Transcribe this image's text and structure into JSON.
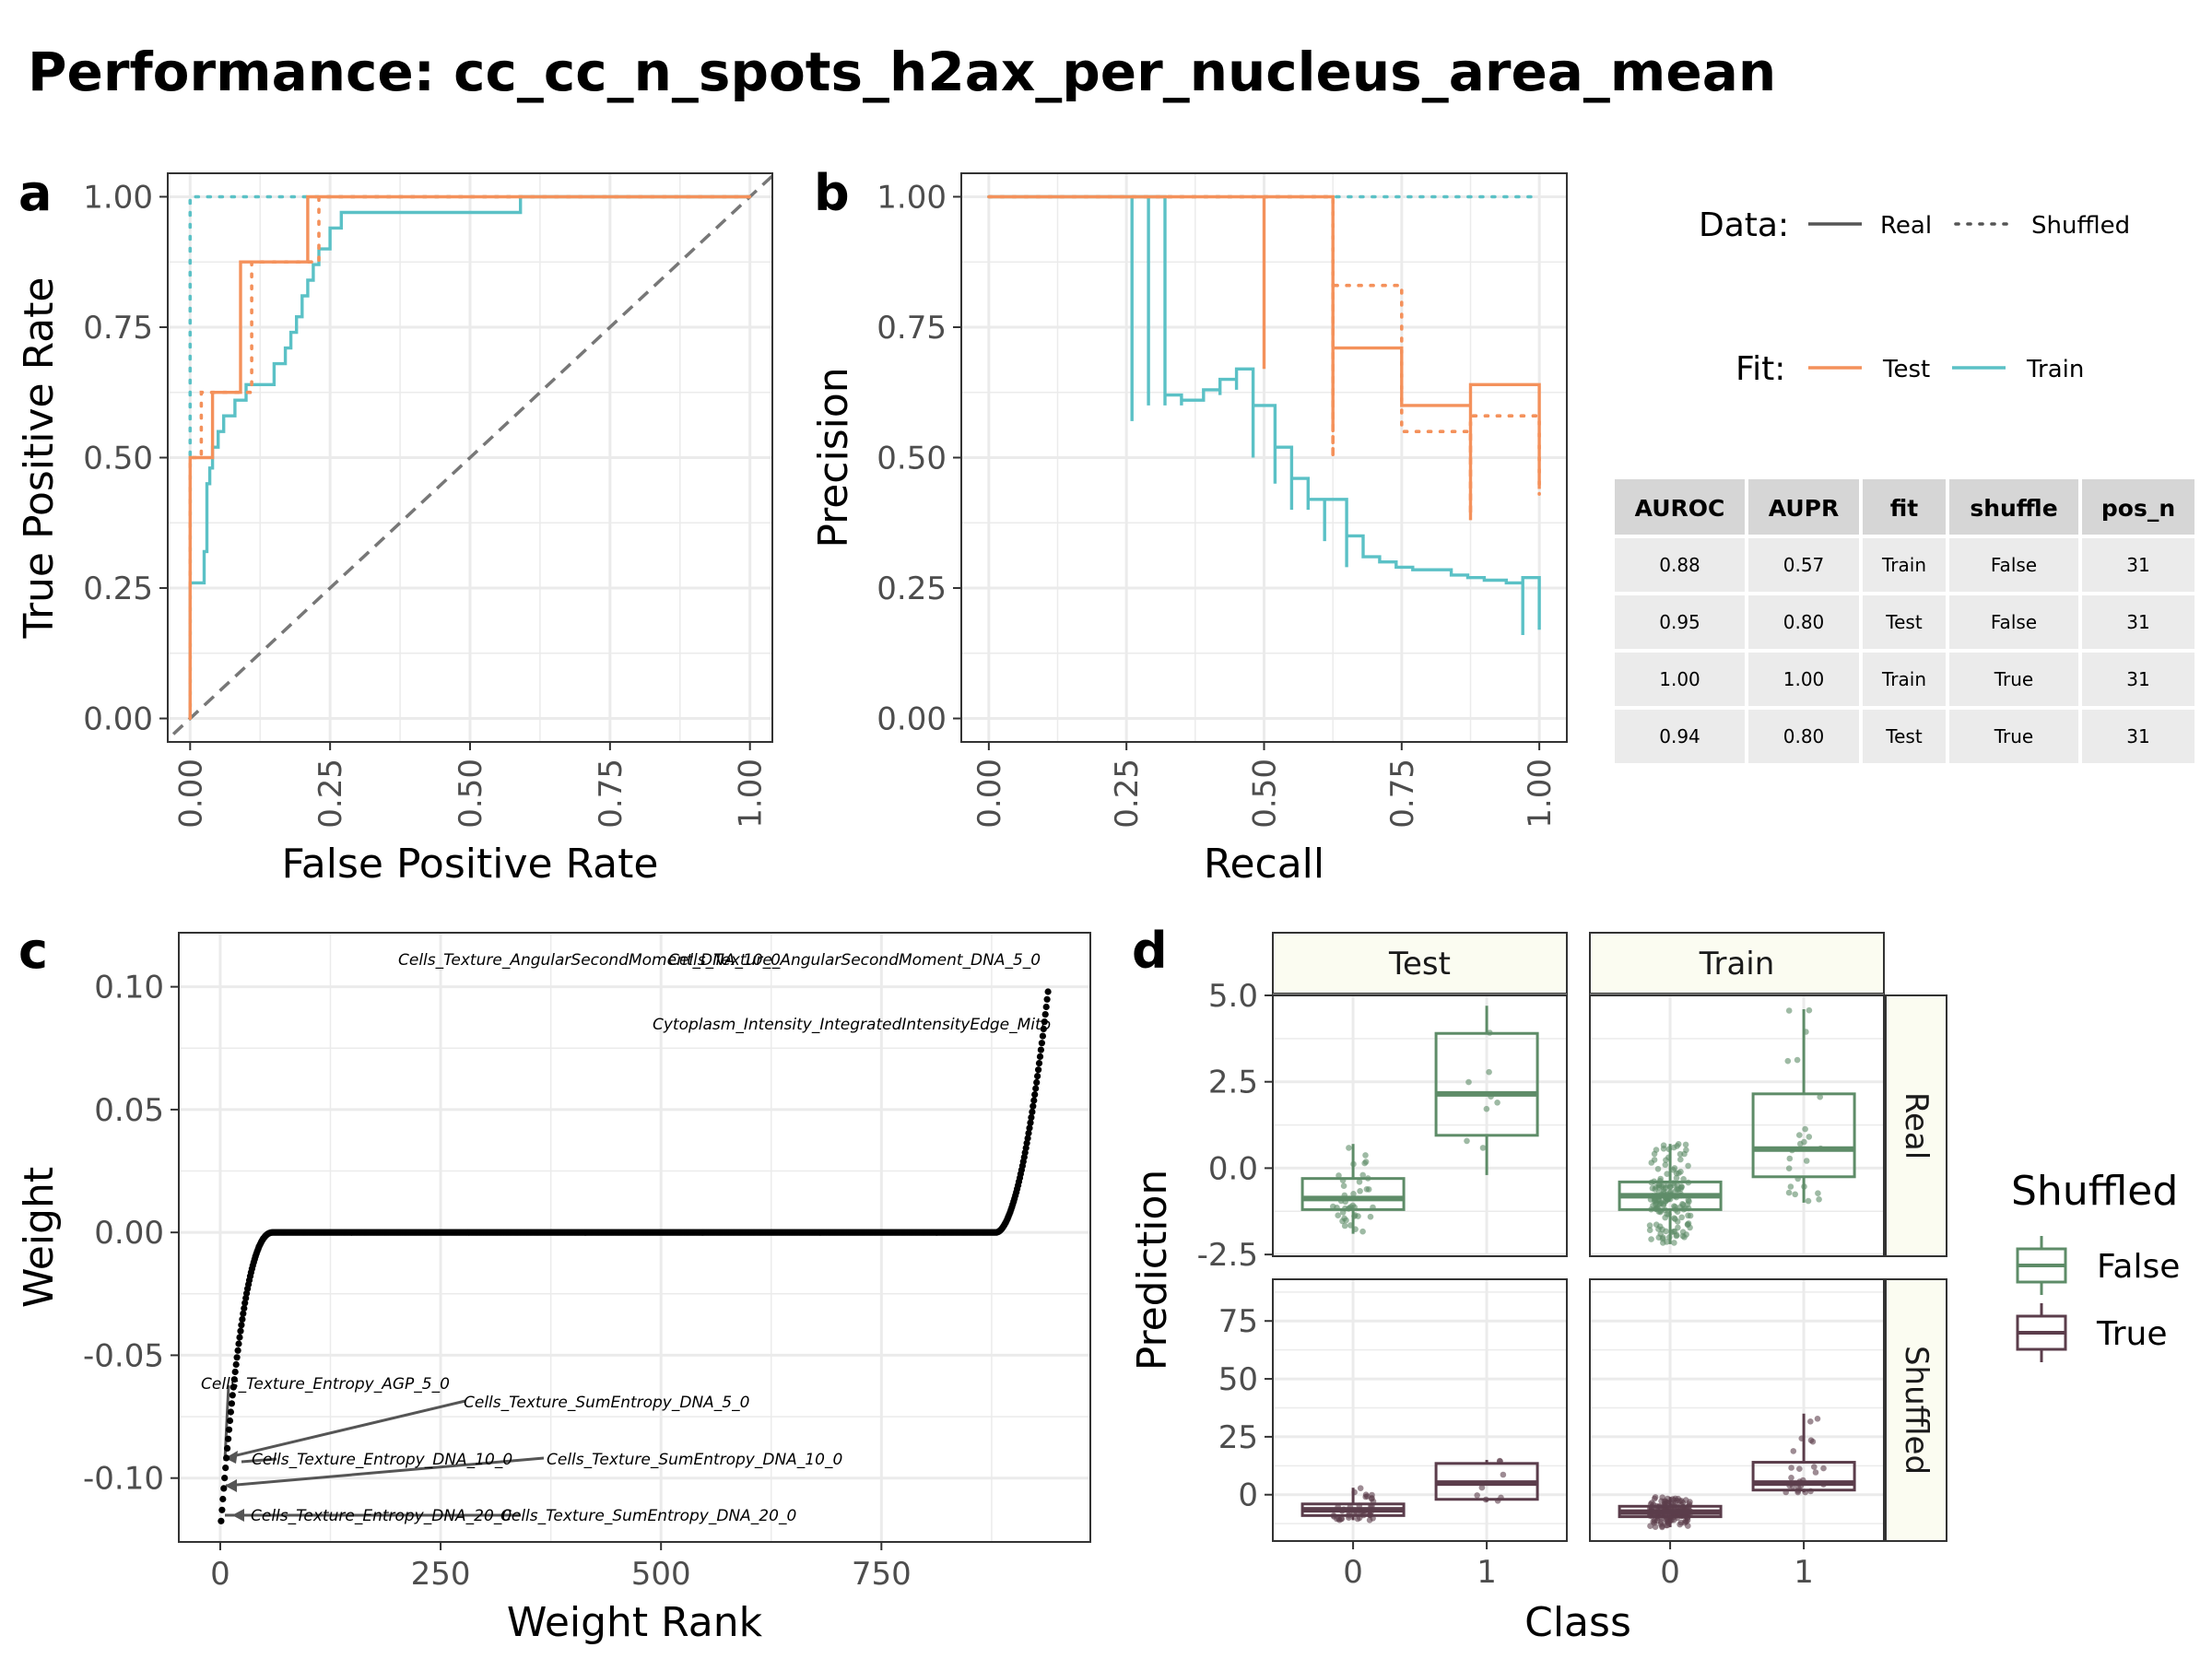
{
  "figure": {
    "title": "Performance: cc_cc_n_spots_h2ax_per_nucleus_area_mean",
    "panel_letters": [
      "a",
      "b",
      "c",
      "d"
    ],
    "colors": {
      "test": "#F4915B",
      "train": "#5BC1C6",
      "shuffled_false": "#5E8C68",
      "shuffled_true": "#5B3D4B",
      "grid": "#EBEBEB",
      "strip_fill": "#FBFCF1"
    }
  },
  "legend": {
    "data_label": "Data:",
    "data_items": [
      "Real",
      "Shuffled"
    ],
    "fit_label": "Fit:",
    "fit_items": [
      "Test",
      "Train"
    ]
  },
  "metrics_table": {
    "columns": [
      "AUROC",
      "AUPR",
      "fit",
      "shuffle",
      "pos_n"
    ],
    "rows": [
      [
        "0.88",
        "0.57",
        "Train",
        "False",
        "31"
      ],
      [
        "0.95",
        "0.80",
        "Test",
        "False",
        "31"
      ],
      [
        "1.00",
        "1.00",
        "Train",
        "True",
        "31"
      ],
      [
        "0.94",
        "0.80",
        "Test",
        "True",
        "31"
      ]
    ]
  },
  "shuffle_legend": {
    "title": "Shuffled",
    "items": [
      "False",
      "True"
    ]
  },
  "chart_data": [
    {
      "panel": "a",
      "type": "line",
      "xlabel": "False Positive Rate",
      "ylabel": "True Positive Rate",
      "xlim": [
        -0.04,
        1.04
      ],
      "ylim": [
        -0.045,
        1.045
      ],
      "xticks": [
        "0.00",
        "0.25",
        "0.50",
        "0.75",
        "1.00"
      ],
      "yticks": [
        "0.00",
        "0.25",
        "0.50",
        "0.75",
        "1.00"
      ],
      "series": [
        {
          "fit": "Test",
          "data": "Real",
          "x": [
            0,
            0,
            0.01,
            0.01,
            0.04,
            0.04,
            0.09,
            0.09,
            0.21,
            0.21,
            1.0
          ],
          "y": [
            0,
            0.5,
            0.5,
            0.5,
            0.5,
            0.625,
            0.625,
            0.875,
            0.875,
            1.0,
            1.0
          ]
        },
        {
          "fit": "Test",
          "data": "Shuffled",
          "x": [
            0,
            0,
            0.02,
            0.02,
            0.11,
            0.11,
            0.23,
            0.23,
            1.0
          ],
          "y": [
            0,
            0.5,
            0.5,
            0.625,
            0.625,
            0.875,
            0.875,
            1.0,
            1.0
          ]
        },
        {
          "fit": "Train",
          "data": "Real",
          "x": [
            0,
            0,
            0.025,
            0.025,
            0.03,
            0.03,
            0.035,
            0.035,
            0.04,
            0.04,
            0.05,
            0.05,
            0.06,
            0.06,
            0.08,
            0.08,
            0.09,
            0.09,
            0.1,
            0.1,
            0.12,
            0.12,
            0.15,
            0.15,
            0.17,
            0.17,
            0.18,
            0.18,
            0.19,
            0.19,
            0.2,
            0.2,
            0.21,
            0.21,
            0.22,
            0.22,
            0.23,
            0.23,
            0.24,
            0.24,
            0.25,
            0.25,
            0.27,
            0.27,
            0.3,
            0.3,
            0.59,
            0.59,
            1.0
          ],
          "y": [
            0,
            0.26,
            0.26,
            0.32,
            0.32,
            0.45,
            0.45,
            0.48,
            0.48,
            0.52,
            0.52,
            0.55,
            0.55,
            0.58,
            0.58,
            0.61,
            0.61,
            0.61,
            0.61,
            0.64,
            0.64,
            0.64,
            0.64,
            0.68,
            0.68,
            0.71,
            0.71,
            0.74,
            0.74,
            0.77,
            0.77,
            0.81,
            0.81,
            0.84,
            0.84,
            0.87,
            0.87,
            0.9,
            0.9,
            0.9,
            0.9,
            0.94,
            0.94,
            0.97,
            0.97,
            0.97,
            0.97,
            1.0,
            1.0
          ]
        },
        {
          "fit": "Train",
          "data": "Shuffled",
          "x": [
            0,
            0,
            1.0
          ],
          "y": [
            0,
            1.0,
            1.0
          ]
        }
      ],
      "reference_line": {
        "x": [
          0,
          1
        ],
        "y": [
          0,
          1
        ]
      }
    },
    {
      "panel": "b",
      "type": "line",
      "xlabel": "Recall",
      "ylabel": "Precision",
      "xlim": [
        -0.05,
        1.05
      ],
      "ylim": [
        -0.045,
        1.045
      ],
      "xticks": [
        "0.00",
        "0.25",
        "0.50",
        "0.75",
        "1.00"
      ],
      "yticks": [
        "0.00",
        "0.25",
        "0.50",
        "0.75",
        "1.00"
      ],
      "series": [
        {
          "fit": "Test",
          "data": "Real",
          "x": [
            0,
            0.5,
            0.5,
            0.5,
            0.5,
            0.625,
            0.625,
            0.625,
            0.625,
            0.75,
            0.75,
            0.875,
            0.875,
            0.875,
            0.875,
            1.0,
            1.0
          ],
          "y": [
            1.0,
            1.0,
            0.67,
            1.0,
            1.0,
            1.0,
            0.56,
            0.71,
            0.71,
            0.71,
            0.6,
            0.6,
            0.38,
            0.64,
            0.64,
            0.64,
            0.44
          ]
        },
        {
          "fit": "Test",
          "data": "Shuffled",
          "x": [
            0,
            0.625,
            0.625,
            0.625,
            0.625,
            0.75,
            0.75,
            0.875,
            0.875,
            0.875,
            0.875,
            1.0,
            1.0
          ],
          "y": [
            1.0,
            1.0,
            0.5,
            0.83,
            0.83,
            0.83,
            0.55,
            0.55,
            0.39,
            0.58,
            0.58,
            0.58,
            0.43
          ]
        },
        {
          "fit": "Train",
          "data": "Real",
          "x": [
            0,
            0.26,
            0.26,
            0.26,
            0.29,
            0.29,
            0.29,
            0.32,
            0.32,
            0.32,
            0.32,
            0.35,
            0.35,
            0.35,
            0.39,
            0.39,
            0.39,
            0.42,
            0.42,
            0.42,
            0.45,
            0.45,
            0.45,
            0.48,
            0.48,
            0.48,
            0.48,
            0.52,
            0.52,
            0.52,
            0.55,
            0.55,
            0.55,
            0.58,
            0.58,
            0.58,
            0.61,
            0.61,
            0.61,
            0.65,
            0.65,
            0.65,
            0.68,
            0.68,
            0.71,
            0.71,
            0.74,
            0.74,
            0.77,
            0.77,
            0.81,
            0.81,
            0.84,
            0.84,
            0.87,
            0.87,
            0.9,
            0.9,
            0.94,
            0.94,
            0.97,
            0.97,
            0.97,
            0.97,
            1.0,
            1.0
          ],
          "y": [
            1.0,
            1.0,
            0.57,
            1.0,
            1.0,
            0.6,
            1.0,
            1.0,
            0.6,
            0.6,
            0.62,
            0.62,
            0.6,
            0.61,
            0.61,
            0.62,
            0.63,
            0.63,
            0.62,
            0.65,
            0.65,
            0.63,
            0.67,
            0.67,
            0.5,
            0.67,
            0.6,
            0.6,
            0.45,
            0.52,
            0.52,
            0.4,
            0.46,
            0.46,
            0.4,
            0.42,
            0.42,
            0.34,
            0.42,
            0.42,
            0.29,
            0.35,
            0.35,
            0.31,
            0.31,
            0.3,
            0.3,
            0.29,
            0.29,
            0.285,
            0.285,
            0.285,
            0.285,
            0.275,
            0.275,
            0.27,
            0.27,
            0.265,
            0.265,
            0.26,
            0.26,
            0.16,
            0.26,
            0.27,
            0.27,
            0.17
          ]
        },
        {
          "fit": "Train",
          "data": "Shuffled",
          "x": [
            0,
            1.0
          ],
          "y": [
            1.0,
            1.0
          ]
        }
      ]
    },
    {
      "panel": "c",
      "type": "scatter",
      "xlabel": "Weight Rank",
      "ylabel": "Weight",
      "xlim": [
        -47,
        987
      ],
      "ylim": [
        -0.126,
        0.122
      ],
      "xticks": [
        0,
        250,
        500,
        750
      ],
      "yticks": [
        0.1,
        0.05,
        0.0,
        -0.05,
        -0.1
      ],
      "ytick_labels": [
        "0.10",
        "0.05",
        "0.00",
        "-0.05",
        "-0.10"
      ],
      "points": {
        "n": 939,
        "nonzero_negative_ranks": [
          1,
          60
        ],
        "nonzero_positive_ranks": [
          880,
          939
        ],
        "min": -0.1175,
        "max": 0.098
      },
      "annotations": [
        {
          "label": "Cells_Texture_AngularSecondMoment_DNA_10_0",
          "x": 938,
          "y": 0.098
        },
        {
          "label": "Cells_Texture_AngularSecondMoment_DNA_5_0",
          "x": 939,
          "y": 0.098
        },
        {
          "label": "Cytoplasm_Intensity_IntegratedIntensityEdge_Mito",
          "x": 937,
          "y": 0.08
        },
        {
          "label": "Cells_Texture_Entropy_AGP_5_0",
          "x": 8,
          "y": -0.092
        },
        {
          "label": "Cells_Texture_SumEntropy_DNA_5_0",
          "x": 5,
          "y": -0.096
        },
        {
          "label": "Cells_Texture_Entropy_DNA_10_0",
          "x": 6,
          "y": -0.094
        },
        {
          "label": "Cells_Texture_SumEntropy_DNA_10_0",
          "x": 4,
          "y": -0.105
        },
        {
          "label": "Cells_Texture_Entropy_DNA_20_0",
          "x": 1,
          "y": -0.1175
        },
        {
          "label": "Cells_Texture_SumEntropy_DNA_20_0",
          "x": 2,
          "y": -0.1175
        }
      ]
    },
    {
      "panel": "d",
      "type": "box",
      "xlabel": "Class",
      "ylabel": "Prediction",
      "columns": [
        "Test",
        "Train"
      ],
      "rows": [
        "Real",
        "Shuffled"
      ],
      "categories": [
        "0",
        "1"
      ],
      "real_ylim": [
        -2.55,
        5.0
      ],
      "real_yticks": [
        "5.0",
        "2.5",
        "0.0",
        "-2.5"
      ],
      "shuffled_ylim": [
        -20,
        93
      ],
      "shuffled_yticks": [
        "75",
        "50",
        "25",
        "0"
      ],
      "boxes": [
        {
          "row": "Real",
          "col": "Test",
          "class": "0",
          "shuffled": "False",
          "q1": -1.2,
          "median": -0.88,
          "q3": -0.3,
          "whisker_low": -1.9,
          "whisker_high": 0.7
        },
        {
          "row": "Real",
          "col": "Test",
          "class": "1",
          "shuffled": "False",
          "q1": 0.95,
          "median": 2.15,
          "q3": 3.9,
          "whisker_low": -0.2,
          "whisker_high": 4.7
        },
        {
          "row": "Real",
          "col": "Train",
          "class": "0",
          "shuffled": "False",
          "q1": -1.2,
          "median": -0.8,
          "q3": -0.4,
          "whisker_low": -2.2,
          "whisker_high": 0.7
        },
        {
          "row": "Real",
          "col": "Train",
          "class": "1",
          "shuffled": "False",
          "q1": -0.25,
          "median": 0.55,
          "q3": 2.15,
          "whisker_low": -1.0,
          "whisker_high": 4.6
        },
        {
          "row": "Shuffled",
          "col": "Test",
          "class": "0",
          "shuffled": "True",
          "q1": -9,
          "median": -6.5,
          "q3": -4,
          "whisker_low": -11,
          "whisker_high": 3
        },
        {
          "row": "Shuffled",
          "col": "Test",
          "class": "1",
          "shuffled": "True",
          "q1": -2,
          "median": 5,
          "q3": 13.5,
          "whisker_low": -3,
          "whisker_high": 15
        },
        {
          "row": "Shuffled",
          "col": "Train",
          "class": "0",
          "shuffled": "True",
          "q1": -9.5,
          "median": -7.5,
          "q3": -5,
          "whisker_low": -14,
          "whisker_high": -1
        },
        {
          "row": "Shuffled",
          "col": "Train",
          "class": "1",
          "shuffled": "True",
          "q1": 2,
          "median": 5,
          "q3": 14,
          "whisker_low": 1,
          "whisker_high": 35
        }
      ],
      "legend_title": "Shuffled",
      "legend_items": [
        "False",
        "True"
      ]
    }
  ]
}
